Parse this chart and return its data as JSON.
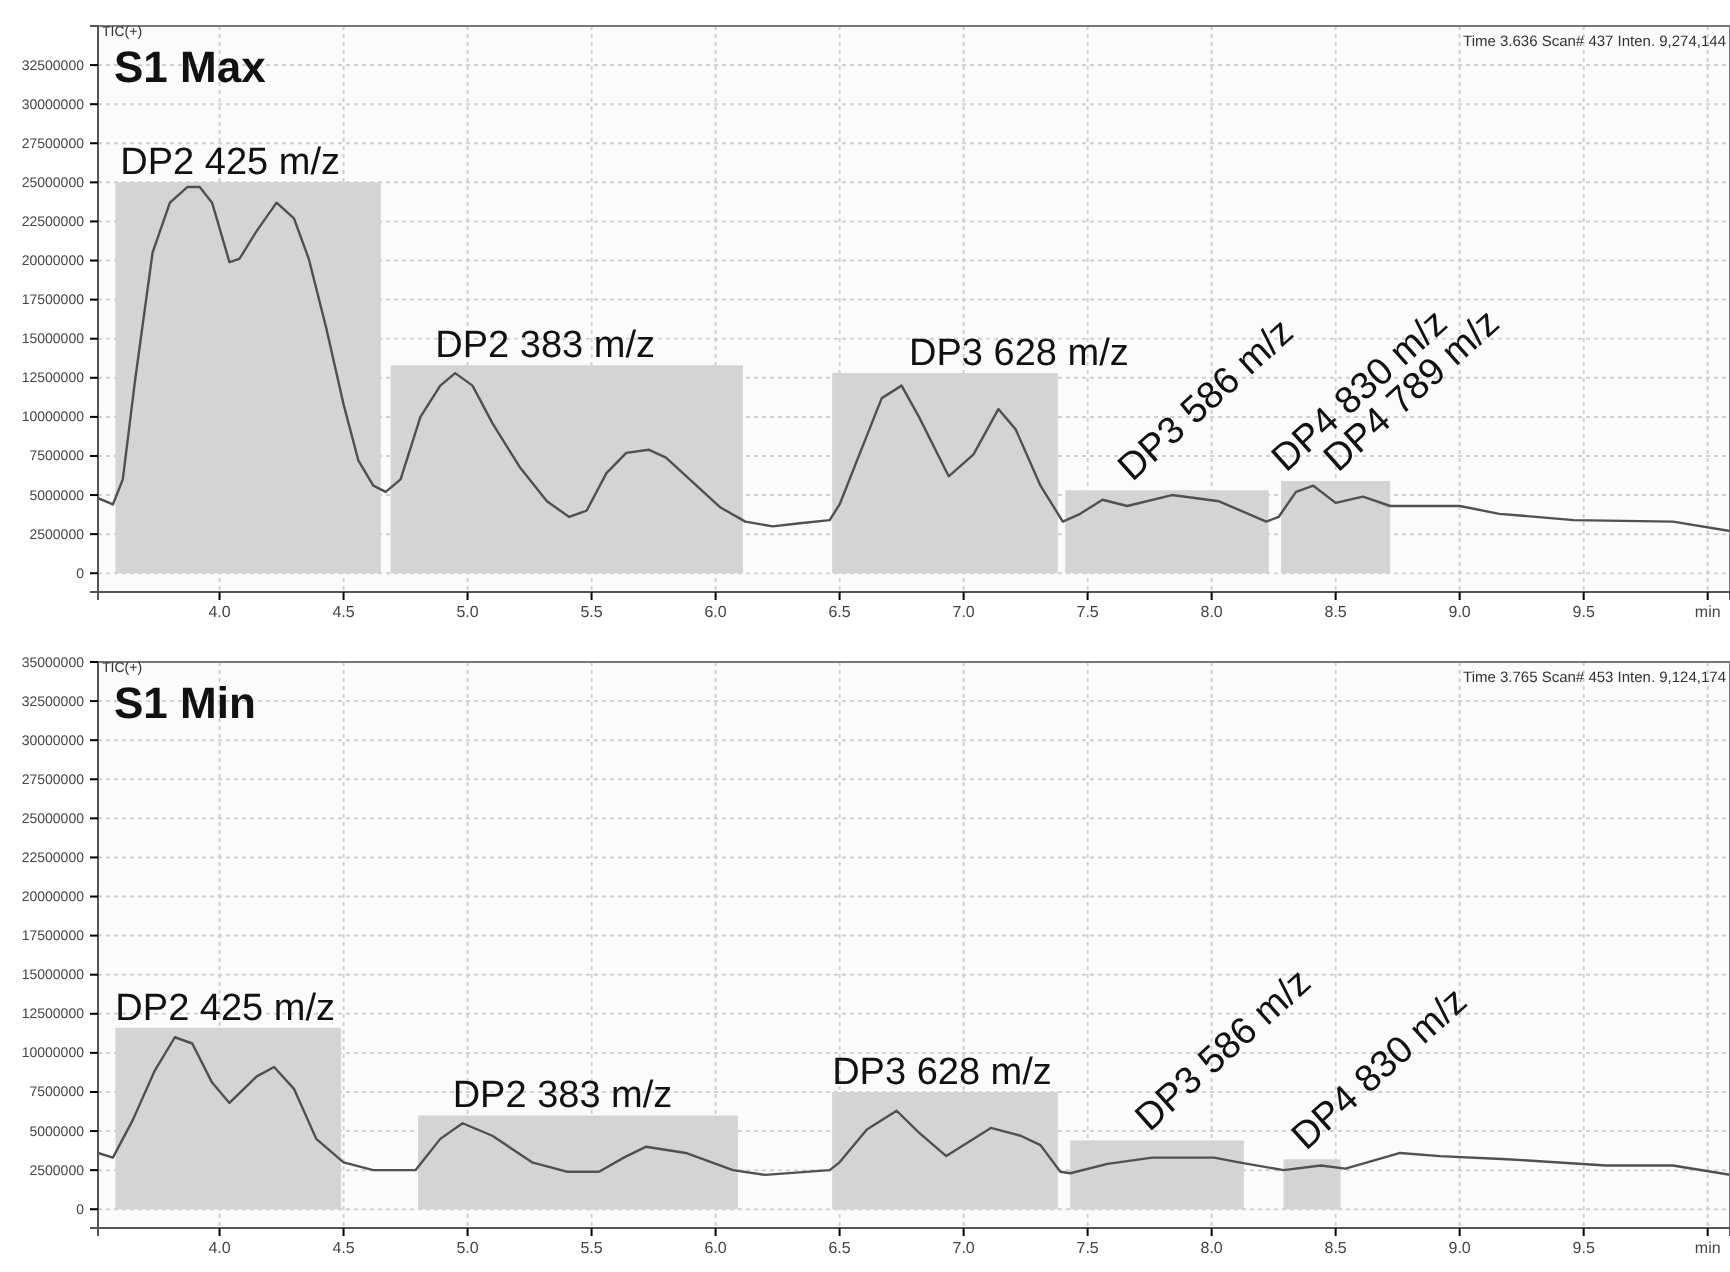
{
  "chart_data": [
    {
      "type": "line",
      "title": "S1 Max",
      "ylabel": "TIC(+)",
      "xlim": [
        3.51,
        10.09
      ],
      "xticks": [
        {
          "value": 4,
          "label": "4.0"
        },
        {
          "value": 4.5,
          "label": "4.5"
        },
        {
          "value": 5,
          "label": "5.0"
        },
        {
          "value": 5.5,
          "label": "5.5"
        },
        {
          "value": 6,
          "label": "6.0"
        },
        {
          "value": 6.5,
          "label": "6.5"
        },
        {
          "value": 7,
          "label": "7.0"
        },
        {
          "value": 7.5,
          "label": "7.5"
        },
        {
          "value": 8,
          "label": "8.0"
        },
        {
          "value": 8.5,
          "label": "8.5"
        },
        {
          "value": 9,
          "label": "9.0"
        },
        {
          "value": 9.5,
          "label": "9.5"
        },
        {
          "value": 10,
          "label": "min"
        }
      ],
      "ylim": [
        -1200000,
        35000000
      ],
      "yticks": [
        0,
        2500000,
        5000000,
        7500000,
        10000000,
        12500000,
        15000000,
        17500000,
        20000000,
        22500000,
        25000000,
        27500000,
        30000000,
        32500000
      ],
      "grid": true,
      "marker": "none",
      "line_style": "solid",
      "series": [
        {
          "type": "area",
          "color": "#d4d4d4",
          "x": [
            3.58,
            4.65
          ],
          "values": [
            25000000,
            25000000
          ]
        },
        {
          "type": "area",
          "color": "#d4d4d4",
          "x": [
            4.69,
            6.11
          ],
          "values": [
            13300000,
            13300000
          ]
        },
        {
          "type": "area",
          "color": "#d4d4d4",
          "x": [
            6.47,
            7.38
          ],
          "values": [
            12800000,
            12800000
          ]
        },
        {
          "type": "area",
          "color": "#d4d4d4",
          "x": [
            7.41,
            8.23
          ],
          "values": [
            5300000,
            5300000
          ]
        },
        {
          "type": "area",
          "color": "#d4d4d4",
          "x": [
            8.28,
            8.72
          ],
          "values": [
            5900000,
            5900000
          ]
        },
        {
          "color": "#505050",
          "x": [
            3.51,
            3.57,
            3.61,
            3.66,
            3.73,
            3.8,
            3.87,
            3.92,
            3.97,
            4.04,
            4.08,
            4.15,
            4.23,
            4.3,
            4.36,
            4.43,
            4.5,
            4.56,
            4.62,
            4.67,
            4.73,
            4.81,
            4.89,
            4.95,
            5.02,
            5.1,
            5.21,
            5.32,
            5.41,
            5.48,
            5.56,
            5.64,
            5.73,
            5.8,
            5.91,
            6.02,
            6.12,
            6.23,
            6.34,
            6.46,
            6.5,
            6.58,
            6.67,
            6.75,
            6.82,
            6.94,
            7.04,
            7.14,
            7.21,
            7.31,
            7.4,
            7.47,
            7.56,
            7.66,
            7.84,
            8.03,
            8.22,
            8.27,
            8.34,
            8.41,
            8.5,
            8.61,
            8.72,
            9,
            9.16,
            9.46,
            9.86,
            10.09
          ],
          "values": [
            4800000,
            4400000,
            6000000,
            12400000,
            20500000,
            23700000,
            24700000,
            24700000,
            23700000,
            19900000,
            20100000,
            21900000,
            23700000,
            22700000,
            20100000,
            15700000,
            10800000,
            7200000,
            5600000,
            5200000,
            6000000,
            10000000,
            12000000,
            12800000,
            12000000,
            9600000,
            6800000,
            4600000,
            3600000,
            4000000,
            6400000,
            7700000,
            7900000,
            7400000,
            5800000,
            4200000,
            3300000,
            3000000,
            3200000,
            3400000,
            4400000,
            7600000,
            11200000,
            12000000,
            10000000,
            6200000,
            7600000,
            10500000,
            9200000,
            5600000,
            3300000,
            3800000,
            4700000,
            4300000,
            5000000,
            4600000,
            3300000,
            3600000,
            5200000,
            5600000,
            4500000,
            4900000,
            4300000,
            4300000,
            3800000,
            3400000,
            3300000,
            2700000
          ]
        }
      ],
      "annotations": [
        "Time 3.636 Scan# 437 Inten. 9,274,144",
        {
          "text": "DP2 425 m/z",
          "x": 3.6,
          "y": 25000000
        },
        {
          "text": "DP2 383 m/z",
          "x": 4.87,
          "y": 13300000
        },
        {
          "text": "DP3 628 m/z",
          "x": 6.78,
          "y": 12800000
        },
        {
          "text": "DP3 586 m/z",
          "x": 7.68,
          "y": 5300000
        },
        {
          "text": "DP4 830 m/z",
          "x": 8.3,
          "y": 5900000
        },
        {
          "text": "DP4 789 m/z",
          "x": 8.51,
          "y": 5900000
        }
      ]
    },
    {
      "type": "line",
      "title": "S1 Min",
      "ylabel": "TIC(+)",
      "xlim": [
        3.51,
        10.09
      ],
      "xticks": [
        {
          "value": 4,
          "label": "4.0"
        },
        {
          "value": 4.5,
          "label": "4.5"
        },
        {
          "value": 5,
          "label": "5.0"
        },
        {
          "value": 5.5,
          "label": "5.5"
        },
        {
          "value": 6,
          "label": "6.0"
        },
        {
          "value": 6.5,
          "label": "6.5"
        },
        {
          "value": 7,
          "label": "7.0"
        },
        {
          "value": 7.5,
          "label": "7.5"
        },
        {
          "value": 8,
          "label": "8.0"
        },
        {
          "value": 8.5,
          "label": "8.5"
        },
        {
          "value": 9,
          "label": "9.0"
        },
        {
          "value": 9.5,
          "label": "9.5"
        },
        {
          "value": 10,
          "label": "min"
        }
      ],
      "ylim": [
        -1200000,
        35000000
      ],
      "yticks": [
        0,
        2500000,
        5000000,
        7500000,
        10000000,
        12500000,
        15000000,
        17500000,
        20000000,
        22500000,
        25000000,
        27500000,
        30000000,
        32500000,
        35000000
      ],
      "grid": true,
      "marker": "none",
      "line_style": "solid",
      "series": [
        {
          "type": "area",
          "color": "#d4d4d4",
          "x": [
            3.58,
            4.49
          ],
          "values": [
            11600000,
            11600000
          ]
        },
        {
          "type": "area",
          "color": "#d4d4d4",
          "x": [
            4.8,
            6.09
          ],
          "values": [
            6000000,
            6000000
          ]
        },
        {
          "type": "area",
          "color": "#d4d4d4",
          "x": [
            6.47,
            7.38
          ],
          "values": [
            7500000,
            7500000
          ]
        },
        {
          "type": "area",
          "color": "#d4d4d4",
          "x": [
            7.43,
            8.13
          ],
          "values": [
            4400000,
            4400000
          ]
        },
        {
          "type": "area",
          "color": "#d4d4d4",
          "x": [
            8.29,
            8.52
          ],
          "values": [
            3200000,
            3200000
          ]
        },
        {
          "color": "#505050",
          "x": [
            3.51,
            3.57,
            3.65,
            3.74,
            3.82,
            3.89,
            3.97,
            4.04,
            4.15,
            4.22,
            4.3,
            4.39,
            4.5,
            4.62,
            4.79,
            4.89,
            4.98,
            5.1,
            5.26,
            5.4,
            5.53,
            5.63,
            5.72,
            5.88,
            6.07,
            6.2,
            6.46,
            6.5,
            6.61,
            6.73,
            6.82,
            6.93,
            7.11,
            7.23,
            7.31,
            7.39,
            7.43,
            7.58,
            7.76,
            8.01,
            8.11,
            8.29,
            8.44,
            8.54,
            8.76,
            8.92,
            9.19,
            9.59,
            9.86,
            10.09
          ],
          "values": [
            3600000,
            3300000,
            5700000,
            8900000,
            11000000,
            10600000,
            8100000,
            6800000,
            8500000,
            9100000,
            7700000,
            4500000,
            3000000,
            2500000,
            2500000,
            4500000,
            5500000,
            4700000,
            3000000,
            2400000,
            2400000,
            3300000,
            4000000,
            3600000,
            2500000,
            2200000,
            2500000,
            3000000,
            5100000,
            6300000,
            4900000,
            3400000,
            5200000,
            4700000,
            4100000,
            2400000,
            2300000,
            2900000,
            3300000,
            3300000,
            3000000,
            2500000,
            2800000,
            2600000,
            3600000,
            3400000,
            3200000,
            2800000,
            2800000,
            2200000
          ]
        }
      ],
      "annotations": [
        "Time 3.765 Scan# 453 Inten. 9,124,174",
        {
          "text": "DP2 425 m/z",
          "x": 3.58,
          "y": 11600000
        },
        {
          "text": "DP2 383 m/z",
          "x": 4.94,
          "y": 6000000
        },
        {
          "text": "DP3 628 m/z",
          "x": 6.47,
          "y": 7500000
        },
        {
          "text": "DP3 586 m/z",
          "x": 7.75,
          "y": 4400000
        },
        {
          "text": "DP4 830 m/z",
          "x": 8.38,
          "y": 3200000
        }
      ]
    }
  ]
}
